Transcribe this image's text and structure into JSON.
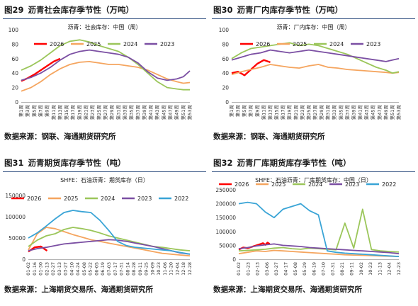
{
  "panels": [
    {
      "fig_no": "图29",
      "title": "沥青社会库存季节性（万吨）",
      "subtitle": "沥青：社会库存：中国（周）",
      "source": "数据来源：钢联、海通期货研究所"
    },
    {
      "fig_no": "图30",
      "title": "沥青厂内库存季节性（万吨）",
      "subtitle": "沥青：厂内库存：中国（周）",
      "source": "数据来源：钢联、海通期货研究所"
    },
    {
      "fig_no": "图31",
      "title": "沥青期货库存季节性（吨）",
      "subtitle": "SHFE：石油沥青：期货库存（日）",
      "source": "数据来源：上海期货交易所、海通期货研究所"
    },
    {
      "fig_no": "图32",
      "title": "沥青厂库期货库存季节性（吨）",
      "subtitle": "SHFE：石油沥青：厂库期货库存：中国（日）",
      "source": "数据来源：上海期货交易所、海通期货研究所"
    }
  ],
  "colors": {
    "s2026": "#ff0000",
    "s2025": "#f5a55f",
    "s2024": "#9bc65a",
    "s2023": "#7b4fa3",
    "s2022": "#39a4d6"
  },
  "chart_data": [
    {
      "type": "line",
      "ylim": [
        0,
        100
      ],
      "yticks": [
        0,
        20,
        40,
        60,
        80,
        100
      ],
      "x": [
        1,
        53
      ],
      "xticks": [
        "第1周",
        "第3周",
        "第5周",
        "第7周",
        "第9周",
        "第11周",
        "第13周",
        "第15周",
        "第17周",
        "第19周",
        "第21周",
        "第23周",
        "第25周",
        "第27周",
        "第29周",
        "第31周",
        "第33周",
        "第35周",
        "第37周",
        "第39周",
        "第41周",
        "第43周",
        "第45周",
        "第47周",
        "第49周",
        "第51周",
        "第53周"
      ],
      "series": [
        {
          "name": "2026",
          "color": "s2026",
          "x": [
            1,
            3,
            5,
            7,
            9,
            11,
            13
          ],
          "values": [
            29,
            33,
            38,
            44,
            50,
            56,
            60
          ]
        },
        {
          "name": "2025",
          "color": "s2025",
          "x": [
            1,
            4,
            7,
            10,
            13,
            16,
            19,
            22,
            25,
            28,
            31,
            34,
            37,
            40,
            43,
            46,
            49,
            51,
            53
          ],
          "values": [
            15,
            20,
            28,
            38,
            46,
            52,
            55,
            56,
            54,
            52,
            52,
            50,
            48,
            44,
            38,
            32,
            28,
            26,
            27
          ]
        },
        {
          "name": "2024",
          "color": "s2024",
          "x": [
            1,
            4,
            7,
            10,
            13,
            16,
            19,
            22,
            25,
            28,
            31,
            34,
            37,
            40,
            43,
            46,
            49,
            51,
            53
          ],
          "values": [
            44,
            50,
            58,
            68,
            78,
            84,
            86,
            83,
            78,
            74,
            70,
            62,
            52,
            40,
            28,
            20,
            18,
            17,
            17
          ]
        },
        {
          "name": "2023",
          "color": "s2023",
          "x": [
            1,
            4,
            7,
            10,
            13,
            16,
            19,
            22,
            25,
            28,
            31,
            34,
            37,
            40,
            43,
            46,
            49,
            51,
            53
          ],
          "values": [
            30,
            34,
            40,
            48,
            58,
            66,
            70,
            72,
            70,
            68,
            66,
            62,
            54,
            42,
            33,
            30,
            32,
            35,
            43
          ]
        }
      ]
    },
    {
      "type": "line",
      "ylim": [
        0,
        100
      ],
      "yticks": [
        0,
        20,
        40,
        60,
        80,
        100
      ],
      "x": [
        1,
        53
      ],
      "xticks": [
        "第1周",
        "第3周",
        "第5周",
        "第7周",
        "第9周",
        "第11周",
        "第13周",
        "第15周",
        "第17周",
        "第19周",
        "第21周",
        "第23周",
        "第25周",
        "第27周",
        "第29周",
        "第31周",
        "第33周",
        "第35周",
        "第37周",
        "第39周",
        "第41周",
        "第43周",
        "第45周",
        "第47周",
        "第49周",
        "第51周",
        "第53周"
      ],
      "series": [
        {
          "name": "2026",
          "color": "s2026",
          "x": [
            1,
            3,
            5,
            7,
            9,
            11,
            13
          ],
          "values": [
            40,
            42,
            37,
            45,
            53,
            58,
            55
          ]
        },
        {
          "name": "2025",
          "color": "s2025",
          "x": [
            1,
            4,
            7,
            10,
            13,
            16,
            19,
            22,
            25,
            28,
            31,
            34,
            37,
            40,
            43,
            46,
            49,
            51,
            53
          ],
          "values": [
            38,
            42,
            45,
            48,
            52,
            50,
            48,
            47,
            50,
            52,
            48,
            47,
            45,
            44,
            43,
            42,
            41,
            40,
            41
          ]
        },
        {
          "name": "2024",
          "color": "s2024",
          "x": [
            1,
            4,
            7,
            10,
            13,
            16,
            19,
            22,
            25,
            28,
            31,
            34,
            37,
            40,
            43,
            46,
            49,
            51,
            53
          ],
          "values": [
            60,
            68,
            74,
            76,
            78,
            80,
            82,
            78,
            80,
            78,
            74,
            70,
            66,
            60,
            54,
            48,
            44,
            40,
            42
          ]
        },
        {
          "name": "2023",
          "color": "s2023",
          "x": [
            1,
            4,
            7,
            10,
            13,
            16,
            19,
            22,
            25,
            28,
            31,
            34,
            37,
            40,
            43,
            46,
            49,
            51,
            53
          ],
          "values": [
            58,
            62,
            66,
            68,
            72,
            70,
            68,
            70,
            72,
            70,
            68,
            66,
            64,
            62,
            60,
            58,
            56,
            58,
            60
          ]
        }
      ]
    },
    {
      "type": "line",
      "ylim": [
        0,
        150000
      ],
      "yticks": [
        0,
        50000,
        100000,
        150000
      ],
      "x": [
        0,
        362
      ],
      "xticks": [
        "01-02",
        "01-16",
        "01-30",
        "02-13",
        "02-27",
        "03-13",
        "03-27",
        "04-10",
        "04-24",
        "05-08",
        "05-22",
        "06-05",
        "06-19",
        "07-03",
        "07-17",
        "07-31",
        "08-14",
        "08-28",
        "09-11",
        "09-25",
        "10-09",
        "10-23",
        "11-06",
        "11-20",
        "12-04",
        "12-18",
        "12-28"
      ],
      "series": [
        {
          "name": "2026",
          "color": "s2026",
          "x": [
            0,
            14,
            28,
            42
          ],
          "values": [
            18000,
            28000,
            30000,
            20000
          ]
        },
        {
          "name": "2025",
          "color": "s2025",
          "x": [
            0,
            20,
            40,
            60,
            80,
            100,
            120,
            140,
            160,
            180,
            200,
            220,
            240,
            260,
            280,
            300,
            320,
            340,
            362
          ],
          "values": [
            22000,
            60000,
            75000,
            72000,
            65000,
            58000,
            52000,
            46000,
            42000,
            38000,
            34000,
            30000,
            26000,
            22000,
            18000,
            14000,
            12000,
            10000,
            8000
          ]
        },
        {
          "name": "2024",
          "color": "s2024",
          "x": [
            0,
            20,
            40,
            60,
            80,
            100,
            120,
            140,
            160,
            180,
            200,
            220,
            240,
            260,
            280,
            300,
            320,
            340,
            362
          ],
          "values": [
            30000,
            45000,
            55000,
            60000,
            70000,
            75000,
            72000,
            68000,
            62000,
            55000,
            50000,
            45000,
            40000,
            35000,
            30000,
            28000,
            25000,
            22000,
            20000
          ]
        },
        {
          "name": "2023",
          "color": "s2023",
          "x": [
            0,
            20,
            40,
            60,
            80,
            100,
            120,
            140,
            160,
            180,
            200,
            220,
            240,
            260,
            280,
            300,
            320,
            340,
            362
          ],
          "values": [
            20000,
            25000,
            28000,
            32000,
            36000,
            38000,
            40000,
            42000,
            44000,
            46000,
            45000,
            42000,
            38000,
            34000,
            30000,
            25000,
            20000,
            15000,
            12000
          ]
        },
        {
          "name": "2022",
          "color": "s2022",
          "x": [
            0,
            20,
            40,
            60,
            80,
            100,
            120,
            140,
            160,
            180,
            200,
            220,
            240,
            260,
            280,
            300,
            320,
            340,
            362
          ],
          "values": [
            50000,
            62000,
            78000,
            95000,
            110000,
            115000,
            112000,
            110000,
            92000,
            68000,
            42000,
            32000,
            28000,
            26000,
            24000,
            22000,
            20000,
            16000,
            12000
          ]
        }
      ]
    },
    {
      "type": "line",
      "ylim": [
        0,
        250000
      ],
      "yticks": [
        0,
        50000,
        100000,
        150000,
        200000,
        250000
      ],
      "x": [
        0,
        362
      ],
      "xticks": [
        "01-02",
        "01-23",
        "02-13",
        "03-06",
        "03-27",
        "04-17",
        "05-08",
        "05-29",
        "06-19",
        "07-10",
        "07-31",
        "08-21",
        "09-11",
        "10-02",
        "10-23",
        "11-13",
        "12-04",
        "12-23"
      ],
      "series": [
        {
          "name": "2026",
          "color": "s2026",
          "x": [
            0,
            10,
            20,
            30,
            40,
            50,
            55,
            60,
            65,
            70
          ],
          "values": [
            35000,
            42000,
            40000,
            45000,
            50000,
            55000,
            58000,
            52000,
            60000,
            55000
          ]
        },
        {
          "name": "2025",
          "color": "s2025",
          "x": [
            0,
            20,
            40,
            60,
            80,
            100,
            120,
            140,
            160,
            180,
            200,
            220,
            240,
            260,
            280,
            300,
            320,
            340,
            362
          ],
          "values": [
            20000,
            25000,
            30000,
            28000,
            32000,
            30000,
            28000,
            26000,
            24000,
            22000,
            20000,
            18000,
            16000,
            15000,
            14000,
            13000,
            12000,
            11000,
            10000
          ]
        },
        {
          "name": "2024",
          "color": "s2024",
          "x": [
            0,
            20,
            40,
            60,
            80,
            100,
            120,
            140,
            160,
            180,
            200,
            220,
            240,
            260,
            280,
            300,
            320,
            340,
            362
          ],
          "values": [
            30000,
            32000,
            34000,
            36000,
            40000,
            42000,
            38000,
            36000,
            40000,
            38000,
            36000,
            34000,
            130000,
            40000,
            180000,
            35000,
            30000,
            28000,
            26000
          ]
        },
        {
          "name": "2023",
          "color": "s2023",
          "x": [
            0,
            20,
            40,
            60,
            80,
            100,
            120,
            140,
            160,
            180,
            200,
            220,
            240,
            260,
            280,
            300,
            320,
            340,
            362
          ],
          "values": [
            38000,
            42000,
            48000,
            52000,
            55000,
            50000,
            48000,
            46000,
            42000,
            40000,
            38000,
            36000,
            34000,
            32000,
            30000,
            28000,
            26000,
            24000,
            20000
          ]
        },
        {
          "name": "2022",
          "color": "s2022",
          "x": [
            0,
            20,
            40,
            60,
            80,
            100,
            120,
            140,
            160,
            180,
            200,
            220,
            240,
            260,
            280,
            300,
            320,
            340,
            362
          ],
          "values": [
            200000,
            205000,
            200000,
            170000,
            150000,
            180000,
            190000,
            200000,
            175000,
            160000,
            30000,
            25000,
            22000,
            20000,
            18000,
            16000,
            14000,
            12000,
            10000
          ]
        }
      ]
    }
  ]
}
